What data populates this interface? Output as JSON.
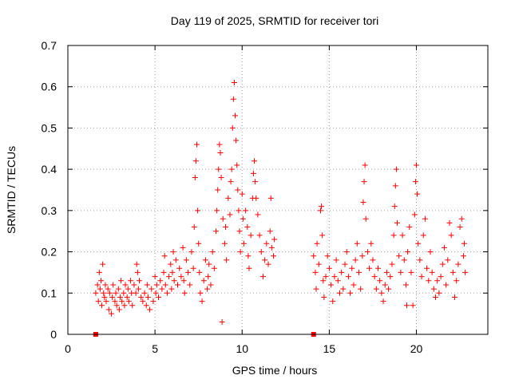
{
  "chart_data": {
    "type": "scatter",
    "title": "Day 119 of 2025, SRMTID for receiver tori",
    "xlabel": "GPS time / hours",
    "ylabel": "SRMTID / TECUs",
    "xlim": [
      0,
      24.1
    ],
    "ylim": [
      0,
      0.7
    ],
    "x_ticks": [
      0,
      5,
      10,
      15,
      20
    ],
    "x_tick_labels": [
      "0",
      "5",
      "10",
      "15",
      "20"
    ],
    "y_ticks": [
      0,
      0.1,
      0.2,
      0.3,
      0.4,
      0.5,
      0.6,
      0.7
    ],
    "y_tick_labels": [
      "0",
      "0.1",
      "0.2",
      "0.3",
      "0.4",
      "0.5",
      "0.6",
      "0.7"
    ],
    "grid": true,
    "marker": "plus",
    "series_color": "#ff0000",
    "zero_markers": [
      {
        "x": 1.6,
        "y": 0
      },
      {
        "x": 14.1,
        "y": 0
      }
    ],
    "series": [
      {
        "name": "SRMTID",
        "points": [
          [
            1.6,
            0.1
          ],
          [
            1.7,
            0.12
          ],
          [
            1.75,
            0.08
          ],
          [
            1.8,
            0.15
          ],
          [
            1.85,
            0.11
          ],
          [
            1.9,
            0.13
          ],
          [
            1.95,
            0.07
          ],
          [
            2.0,
            0.17
          ],
          [
            2.05,
            0.1
          ],
          [
            2.1,
            0.09
          ],
          [
            2.15,
            0.12
          ],
          [
            2.2,
            0.08
          ],
          [
            2.3,
            0.11
          ],
          [
            2.35,
            0.06
          ],
          [
            2.4,
            0.1
          ],
          [
            2.5,
            0.05
          ],
          [
            2.55,
            0.09
          ],
          [
            2.6,
            0.12
          ],
          [
            2.7,
            0.08
          ],
          [
            2.75,
            0.1
          ],
          [
            2.8,
            0.07
          ],
          [
            2.9,
            0.11
          ],
          [
            2.95,
            0.06
          ],
          [
            3.0,
            0.09
          ],
          [
            3.05,
            0.13
          ],
          [
            3.1,
            0.08
          ],
          [
            3.2,
            0.1
          ],
          [
            3.25,
            0.07
          ],
          [
            3.3,
            0.12
          ],
          [
            3.4,
            0.09
          ],
          [
            3.45,
            0.11
          ],
          [
            3.5,
            0.08
          ],
          [
            3.6,
            0.13
          ],
          [
            3.65,
            0.1
          ],
          [
            3.7,
            0.07
          ],
          [
            3.8,
            0.12
          ],
          [
            3.9,
            0.1
          ],
          [
            3.95,
            0.17
          ],
          [
            4.0,
            0.15
          ],
          [
            4.05,
            0.11
          ],
          [
            4.1,
            0.13
          ],
          [
            4.2,
            0.09
          ],
          [
            4.3,
            0.08
          ],
          [
            4.4,
            0.1
          ],
          [
            4.5,
            0.07
          ],
          [
            4.55,
            0.12
          ],
          [
            4.6,
            0.09
          ],
          [
            4.7,
            0.06
          ],
          [
            4.8,
            0.11
          ],
          [
            4.9,
            0.08
          ],
          [
            5.0,
            0.14
          ],
          [
            5.05,
            0.1
          ],
          [
            5.1,
            0.12
          ],
          [
            5.2,
            0.09
          ],
          [
            5.3,
            0.13
          ],
          [
            5.4,
            0.11
          ],
          [
            5.5,
            0.15
          ],
          [
            5.55,
            0.19
          ],
          [
            5.6,
            0.12
          ],
          [
            5.7,
            0.1
          ],
          [
            5.8,
            0.14
          ],
          [
            5.9,
            0.17
          ],
          [
            5.95,
            0.11
          ],
          [
            6.0,
            0.15
          ],
          [
            6.05,
            0.2
          ],
          [
            6.1,
            0.13
          ],
          [
            6.2,
            0.18
          ],
          [
            6.3,
            0.12
          ],
          [
            6.4,
            0.16
          ],
          [
            6.5,
            0.14
          ],
          [
            6.6,
            0.21
          ],
          [
            6.65,
            0.13
          ],
          [
            6.7,
            0.1
          ],
          [
            6.8,
            0.18
          ],
          [
            6.9,
            0.15
          ],
          [
            7.0,
            0.12
          ],
          [
            7.1,
            0.2
          ],
          [
            7.2,
            0.16
          ],
          [
            7.25,
            0.26
          ],
          [
            7.3,
            0.38
          ],
          [
            7.35,
            0.42
          ],
          [
            7.4,
            0.46
          ],
          [
            7.45,
            0.3
          ],
          [
            7.5,
            0.22
          ],
          [
            7.55,
            0.15
          ],
          [
            7.6,
            0.1
          ],
          [
            7.7,
            0.08
          ],
          [
            7.8,
            0.13
          ],
          [
            7.9,
            0.18
          ],
          [
            8.0,
            0.11
          ],
          [
            8.05,
            0.14
          ],
          [
            8.1,
            0.17
          ],
          [
            8.2,
            0.12
          ],
          [
            8.3,
            0.2
          ],
          [
            8.4,
            0.16
          ],
          [
            8.5,
            0.25
          ],
          [
            8.55,
            0.3
          ],
          [
            8.6,
            0.35
          ],
          [
            8.65,
            0.4
          ],
          [
            8.7,
            0.46
          ],
          [
            8.75,
            0.44
          ],
          [
            8.8,
            0.38
          ],
          [
            8.85,
            0.03
          ],
          [
            8.9,
            0.28
          ],
          [
            9.0,
            0.22
          ],
          [
            9.05,
            0.26
          ],
          [
            9.1,
            0.18
          ],
          [
            9.2,
            0.33
          ],
          [
            9.3,
            0.29
          ],
          [
            9.35,
            0.37
          ],
          [
            9.4,
            0.4
          ],
          [
            9.45,
            0.5
          ],
          [
            9.5,
            0.57
          ],
          [
            9.55,
            0.61
          ],
          [
            9.6,
            0.53
          ],
          [
            9.65,
            0.47
          ],
          [
            9.7,
            0.41
          ],
          [
            9.75,
            0.35
          ],
          [
            9.8,
            0.3
          ],
          [
            9.85,
            0.25
          ],
          [
            9.9,
            0.2
          ],
          [
            10.0,
            0.34
          ],
          [
            10.05,
            0.28
          ],
          [
            10.1,
            0.22
          ],
          [
            10.2,
            0.3
          ],
          [
            10.3,
            0.26
          ],
          [
            10.35,
            0.19
          ],
          [
            10.4,
            0.16
          ],
          [
            10.5,
            0.24
          ],
          [
            10.6,
            0.33
          ],
          [
            10.65,
            0.39
          ],
          [
            10.7,
            0.42
          ],
          [
            10.75,
            0.37
          ],
          [
            10.8,
            0.33
          ],
          [
            10.9,
            0.29
          ],
          [
            11.0,
            0.24
          ],
          [
            11.1,
            0.2
          ],
          [
            11.2,
            0.14
          ],
          [
            11.3,
            0.18
          ],
          [
            11.4,
            0.22
          ],
          [
            11.5,
            0.17
          ],
          [
            11.6,
            0.25
          ],
          [
            11.65,
            0.33
          ],
          [
            11.7,
            0.21
          ],
          [
            11.8,
            0.19
          ],
          [
            11.85,
            0.23
          ],
          [
            14.1,
            0.19
          ],
          [
            14.2,
            0.15
          ],
          [
            14.25,
            0.11
          ],
          [
            14.3,
            0.22
          ],
          [
            14.4,
            0.17
          ],
          [
            14.5,
            0.3
          ],
          [
            14.55,
            0.31
          ],
          [
            14.6,
            0.24
          ],
          [
            14.65,
            0.13
          ],
          [
            14.7,
            0.09
          ],
          [
            14.8,
            0.14
          ],
          [
            14.9,
            0.19
          ],
          [
            15.0,
            0.16
          ],
          [
            15.1,
            0.12
          ],
          [
            15.2,
            0.08
          ],
          [
            15.3,
            0.14
          ],
          [
            15.4,
            0.18
          ],
          [
            15.5,
            0.13
          ],
          [
            15.6,
            0.1
          ],
          [
            15.7,
            0.15
          ],
          [
            15.8,
            0.11
          ],
          [
            15.9,
            0.17
          ],
          [
            16.0,
            0.2
          ],
          [
            16.1,
            0.14
          ],
          [
            16.2,
            0.1
          ],
          [
            16.3,
            0.16
          ],
          [
            16.4,
            0.12
          ],
          [
            16.5,
            0.18
          ],
          [
            16.6,
            0.22
          ],
          [
            16.7,
            0.15
          ],
          [
            16.8,
            0.11
          ],
          [
            16.9,
            0.19
          ],
          [
            16.95,
            0.32
          ],
          [
            17.0,
            0.37
          ],
          [
            17.05,
            0.41
          ],
          [
            17.1,
            0.28
          ],
          [
            17.2,
            0.2
          ],
          [
            17.3,
            0.16
          ],
          [
            17.4,
            0.22
          ],
          [
            17.5,
            0.18
          ],
          [
            17.6,
            0.14
          ],
          [
            17.7,
            0.11
          ],
          [
            17.8,
            0.16
          ],
          [
            17.9,
            0.13
          ],
          [
            18.0,
            0.1
          ],
          [
            18.1,
            0.08
          ],
          [
            18.2,
            0.12
          ],
          [
            18.3,
            0.15
          ],
          [
            18.4,
            0.11
          ],
          [
            18.5,
            0.14
          ],
          [
            18.6,
            0.17
          ],
          [
            18.7,
            0.24
          ],
          [
            18.75,
            0.31
          ],
          [
            18.8,
            0.36
          ],
          [
            18.85,
            0.4
          ],
          [
            18.9,
            0.27
          ],
          [
            19.0,
            0.19
          ],
          [
            19.1,
            0.15
          ],
          [
            19.2,
            0.24
          ],
          [
            19.3,
            0.18
          ],
          [
            19.4,
            0.12
          ],
          [
            19.45,
            0.07
          ],
          [
            19.5,
            0.2
          ],
          [
            19.6,
            0.26
          ],
          [
            19.7,
            0.15
          ],
          [
            19.8,
            0.07
          ],
          [
            19.9,
            0.29
          ],
          [
            19.95,
            0.37
          ],
          [
            20.0,
            0.41
          ],
          [
            20.05,
            0.34
          ],
          [
            20.1,
            0.22
          ],
          [
            20.2,
            0.18
          ],
          [
            20.3,
            0.14
          ],
          [
            20.4,
            0.24
          ],
          [
            20.5,
            0.28
          ],
          [
            20.6,
            0.16
          ],
          [
            20.7,
            0.13
          ],
          [
            20.8,
            0.2
          ],
          [
            20.9,
            0.15
          ],
          [
            21.0,
            0.11
          ],
          [
            21.1,
            0.09
          ],
          [
            21.2,
            0.13
          ],
          [
            21.3,
            0.1
          ],
          [
            21.4,
            0.14
          ],
          [
            21.5,
            0.17
          ],
          [
            21.6,
            0.21
          ],
          [
            21.7,
            0.12
          ],
          [
            21.8,
            0.18
          ],
          [
            21.9,
            0.27
          ],
          [
            22.0,
            0.24
          ],
          [
            22.1,
            0.15
          ],
          [
            22.2,
            0.09
          ],
          [
            22.3,
            0.13
          ],
          [
            22.4,
            0.17
          ],
          [
            22.5,
            0.26
          ],
          [
            22.6,
            0.28
          ],
          [
            22.7,
            0.19
          ],
          [
            22.75,
            0.22
          ],
          [
            22.8,
            0.15
          ]
        ]
      }
    ]
  }
}
